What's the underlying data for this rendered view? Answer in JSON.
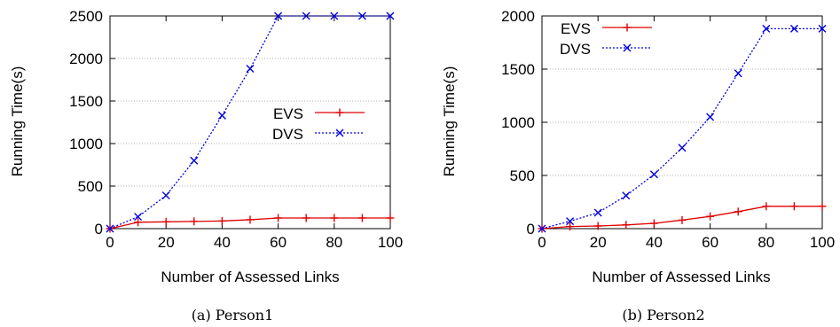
{
  "colors": {
    "evs": "#e00000",
    "dvs": "#0000e0",
    "grid": "#9a9a9a",
    "axis": "#000000"
  },
  "chart_data": [
    {
      "type": "line",
      "caption": "(a) Person1",
      "xlabel": "Number of Assessed Links",
      "ylabel": "Running Time(s)",
      "xlim": [
        0,
        100
      ],
      "ylim": [
        0,
        2500
      ],
      "xticks": [
        0,
        20,
        40,
        60,
        80,
        100
      ],
      "yticks": [
        0,
        500,
        1000,
        1500,
        2000,
        2500
      ],
      "grid": "horizontal dotted",
      "legend": "center-right",
      "series": [
        {
          "name": "EVS",
          "marker": "plus",
          "line": "solid",
          "color": "#e00000",
          "x": [
            0,
            10,
            20,
            30,
            40,
            50,
            60,
            70,
            80,
            90,
            100
          ],
          "y": [
            0,
            75,
            80,
            85,
            90,
            105,
            125,
            125,
            125,
            125,
            125
          ]
        },
        {
          "name": "DVS",
          "marker": "x",
          "line": "dotted",
          "color": "#0000e0",
          "x": [
            0,
            10,
            20,
            30,
            40,
            50,
            60,
            70,
            80,
            90,
            100
          ],
          "y": [
            0,
            140,
            390,
            800,
            1330,
            1880,
            2500,
            2500,
            2500,
            2500,
            2500
          ]
        }
      ]
    },
    {
      "type": "line",
      "caption": "(b) Person2",
      "xlabel": "Number of Assessed Links",
      "ylabel": "Running Time(s)",
      "xlim": [
        0,
        100
      ],
      "ylim": [
        0,
        2000
      ],
      "xticks": [
        0,
        20,
        40,
        60,
        80,
        100
      ],
      "yticks": [
        0,
        500,
        1000,
        1500,
        2000
      ],
      "grid": "horizontal dotted",
      "legend": "top-left",
      "series": [
        {
          "name": "EVS",
          "marker": "plus",
          "line": "solid",
          "color": "#e00000",
          "x": [
            0,
            10,
            20,
            30,
            40,
            50,
            60,
            70,
            80,
            90,
            100
          ],
          "y": [
            0,
            20,
            25,
            35,
            50,
            80,
            115,
            160,
            210,
            210,
            210
          ]
        },
        {
          "name": "DVS",
          "marker": "x",
          "line": "dotted",
          "color": "#0000e0",
          "x": [
            0,
            10,
            20,
            30,
            40,
            50,
            60,
            70,
            80,
            90,
            100
          ],
          "y": [
            0,
            70,
            150,
            310,
            510,
            760,
            1050,
            1460,
            1880,
            1880,
            1880
          ]
        }
      ]
    }
  ]
}
